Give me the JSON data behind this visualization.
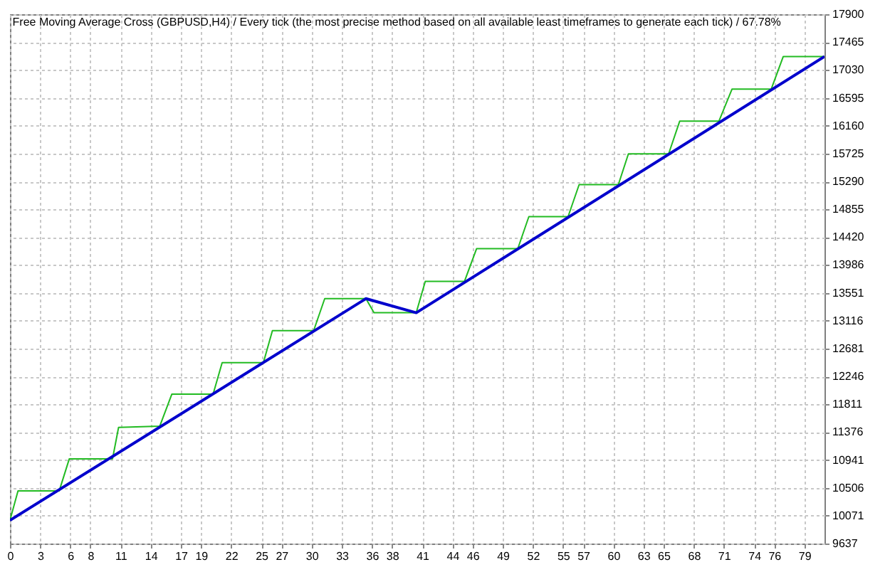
{
  "chart_data": {
    "type": "line",
    "title": "Free Moving Average Cross (GBPUSD,H4) / Every tick (the most precise method based on all available least timeframes to generate each tick) / 67.78%",
    "xlim": [
      0,
      81
    ],
    "xticks": [
      0,
      3,
      6,
      8,
      11,
      14,
      17,
      19,
      22,
      25,
      27,
      30,
      33,
      36,
      38,
      41,
      44,
      46,
      49,
      52,
      55,
      57,
      60,
      63,
      65,
      68,
      71,
      74,
      76,
      79
    ],
    "ylim": [
      9637,
      17900
    ],
    "yticks": [
      9637,
      10071,
      10506,
      10941,
      11376,
      11811,
      12246,
      12681,
      13116,
      13551,
      13986,
      14420,
      14855,
      15290,
      15725,
      16160,
      16595,
      17030,
      17465,
      17900
    ],
    "grid": true,
    "series": [
      {
        "color": "#22bb22",
        "x": [
          0,
          0.8,
          4.9,
          5.9,
          10.2,
          10.8,
          14.9,
          16.1,
          20.2,
          21.1,
          25.2,
          26.1,
          30.2,
          31.3,
          35.4,
          36.2,
          40.4,
          41.3,
          45.2,
          46.4,
          50.5,
          51.6,
          55.5,
          56.6,
          60.5,
          61.5,
          65.5,
          66.6,
          70.5,
          71.8,
          75.7,
          76.9,
          81
        ],
        "values": [
          10000,
          10460,
          10460,
          10960,
          10960,
          11450,
          11470,
          11970,
          11970,
          12460,
          12460,
          12960,
          12960,
          13460,
          13460,
          13240,
          13240,
          13730,
          13730,
          14240,
          14240,
          14740,
          14740,
          15240,
          15240,
          15720,
          15720,
          16230,
          16230,
          16730,
          16730,
          17240,
          17240
        ]
      },
      {
        "color": "#0000cc",
        "x": [
          0,
          35.4,
          40.4,
          81
        ],
        "values": [
          10000,
          13460,
          13240,
          17240
        ]
      }
    ]
  }
}
